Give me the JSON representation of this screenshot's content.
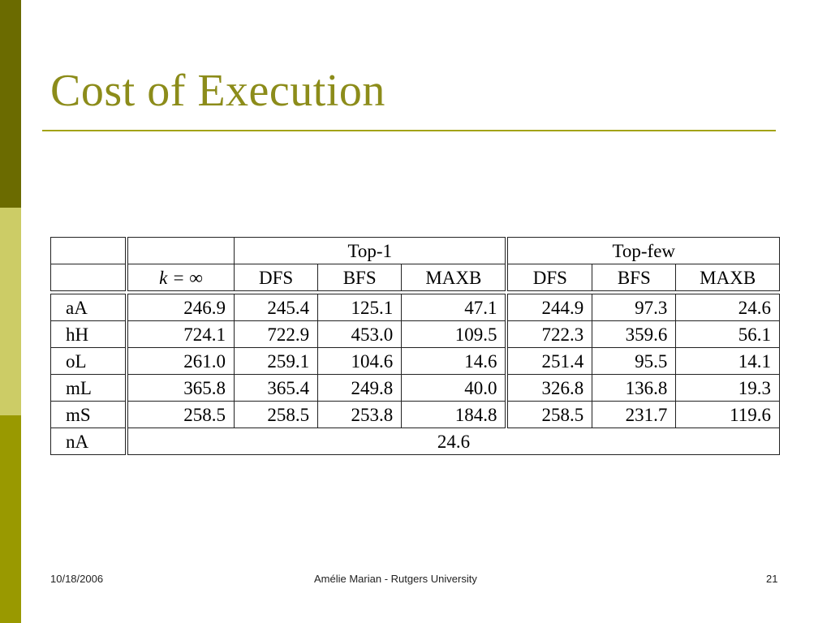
{
  "slide": {
    "title": "Cost of Execution",
    "footer": {
      "date": "10/18/2006",
      "center": "Amélie Marian - Rutgers University",
      "page": "21"
    }
  },
  "table": {
    "group_headers": [
      "Top-1",
      "Top-few"
    ],
    "column_headers": [
      "k = ∞",
      "DFS",
      "BFS",
      "MAXB",
      "DFS",
      "BFS",
      "MAXB"
    ],
    "rows": [
      {
        "label": "aA",
        "values": [
          "246.9",
          "245.4",
          "125.1",
          "47.1",
          "244.9",
          "97.3",
          "24.6"
        ]
      },
      {
        "label": "hH",
        "values": [
          "724.1",
          "722.9",
          "453.0",
          "109.5",
          "722.3",
          "359.6",
          "56.1"
        ]
      },
      {
        "label": "oL",
        "values": [
          "261.0",
          "259.1",
          "104.6",
          "14.6",
          "251.4",
          "95.5",
          "14.1"
        ]
      },
      {
        "label": "mL",
        "values": [
          "365.8",
          "365.4",
          "249.8",
          "40.0",
          "326.8",
          "136.8",
          "19.3"
        ]
      },
      {
        "label": "mS",
        "values": [
          "258.5",
          "258.5",
          "253.8",
          "184.8",
          "258.5",
          "231.7",
          "119.6"
        ]
      }
    ],
    "last_row": {
      "label": "nA",
      "value": "24.6"
    }
  },
  "colors": {
    "sidebar_dark": "#6b6b00",
    "sidebar_light": "#cccc66",
    "sidebar_mid": "#999900",
    "title": "#8c8c1a",
    "rule": "#a3a318"
  }
}
